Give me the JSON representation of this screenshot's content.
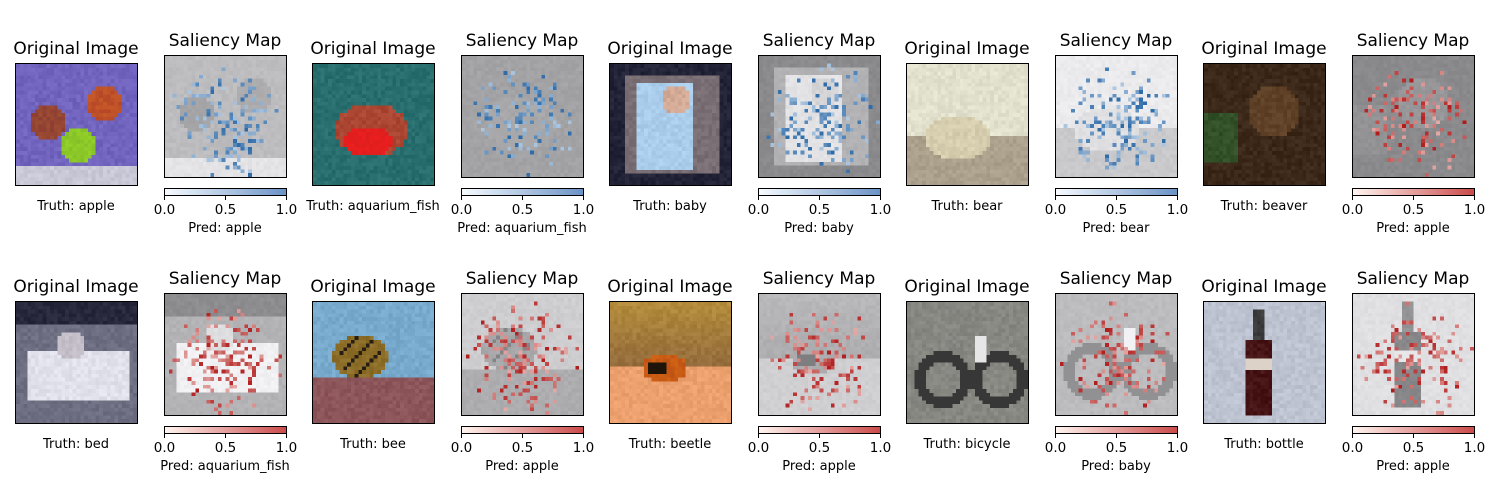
{
  "original_title": "Original Image",
  "saliency_title": "Saliency Map",
  "truth_prefix": "Truth: ",
  "pred_prefix": "Pred: ",
  "colorbar_ticks": [
    "0.0",
    "0.5",
    "1.0"
  ],
  "colors": {
    "blue_cmap_low": "#f7fbff",
    "blue_cmap_high": "#6b93c6",
    "red_cmap_low": "#fff5f0",
    "red_cmap_high": "#cb4b4b"
  },
  "samples": [
    {
      "truth": "apple",
      "pred": "apple",
      "cmap": "blue",
      "image_content": "three apples on purple cloth"
    },
    {
      "truth": "aquarium_fish",
      "pred": "aquarium_fish",
      "cmap": "blue",
      "image_content": "red and teal fish"
    },
    {
      "truth": "baby",
      "pred": "baby",
      "cmap": "blue",
      "image_content": "baby in blue clothes"
    },
    {
      "truth": "bear",
      "pred": "bear",
      "cmap": "blue",
      "image_content": "white bear lying on sand"
    },
    {
      "truth": "beaver",
      "pred": "apple",
      "cmap": "red",
      "image_content": "brown beaver with greenery"
    },
    {
      "truth": "bed",
      "pred": "aquarium_fish",
      "cmap": "red",
      "image_content": "white bed in room"
    },
    {
      "truth": "bee",
      "pred": "apple",
      "cmap": "red",
      "image_content": "bee on flower with blue sky"
    },
    {
      "truth": "beetle",
      "pred": "apple",
      "cmap": "red",
      "image_content": "ladybird beetle on orange surface"
    },
    {
      "truth": "bicycle",
      "pred": "baby",
      "cmap": "red",
      "image_content": "bicycle against grey wall"
    },
    {
      "truth": "bottle",
      "pred": "apple",
      "cmap": "red",
      "image_content": "cola bottle"
    }
  ]
}
